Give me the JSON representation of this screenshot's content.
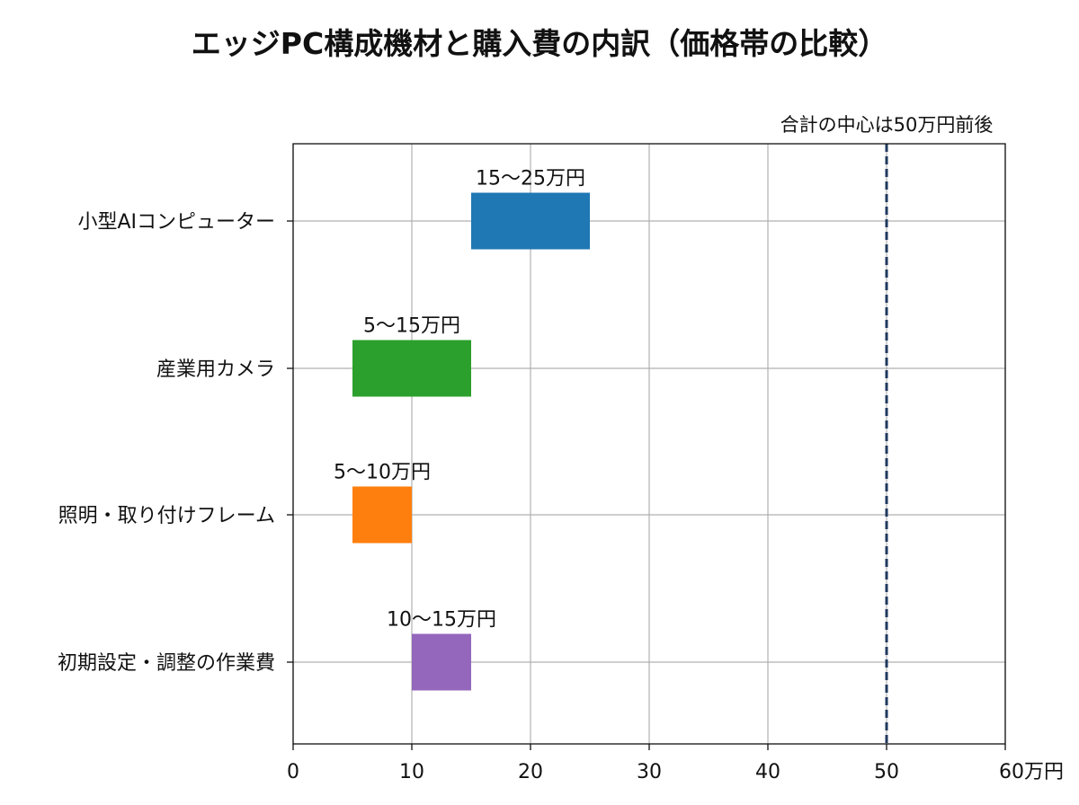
{
  "chart_data": {
    "type": "bar",
    "orientation": "horizontal-range",
    "title": "エッジPC構成機材と購入費の内訳（価格帯の比較）",
    "xlabel": "",
    "ylabel": "",
    "xlim": [
      0,
      60
    ],
    "x_ticks": [
      0,
      10,
      20,
      30,
      40,
      50,
      60
    ],
    "x_tick_labels": [
      "0",
      "10",
      "20",
      "30",
      "40",
      "50",
      "60万円"
    ],
    "grid": true,
    "categories": [
      "小型AIコンピューター",
      "産業用カメラ",
      "照明・取り付けフレーム",
      "初期設定・調整の作業費"
    ],
    "ranges": [
      {
        "low": 15,
        "high": 25,
        "label": "15〜25万円",
        "color": "#1f77b4"
      },
      {
        "low": 5,
        "high": 15,
        "label": "5〜15万円",
        "color": "#2ca02c"
      },
      {
        "low": 5,
        "high": 10,
        "label": "5〜10万円",
        "color": "#ff7f0e"
      },
      {
        "low": 10,
        "high": 15,
        "label": "10〜15万円",
        "color": "#9467bd"
      }
    ],
    "reference_line": {
      "x": 50,
      "label": "合計の中心は50万円前後",
      "color": "#1f3a5f",
      "style": "dashed"
    }
  }
}
